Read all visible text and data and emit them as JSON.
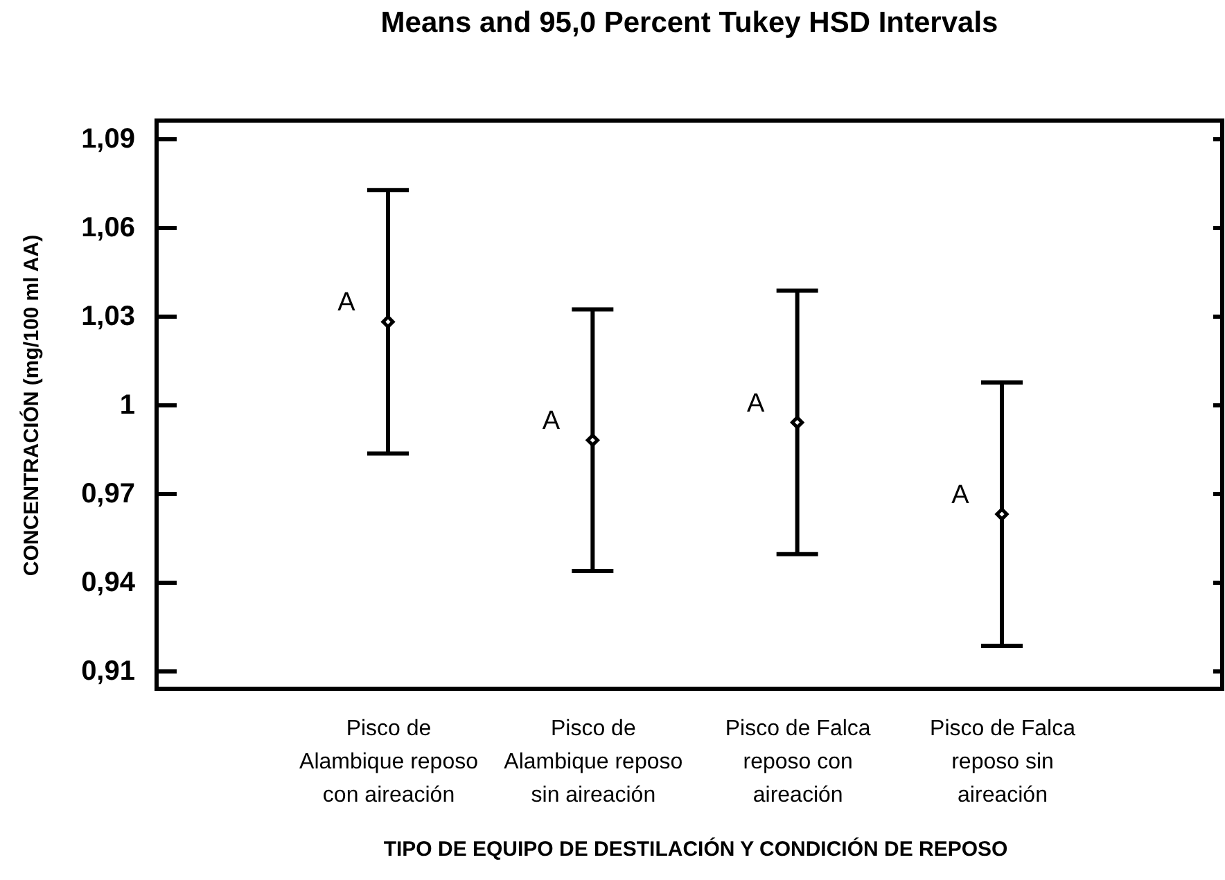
{
  "chart_data": {
    "type": "scatter",
    "title": "Means and 95,0 Percent Tukey HSD Intervals",
    "xlabel": "TIPO DE EQUIPO DE DESTILACIÓN Y CONDICIÓN DE REPOSO",
    "ylabel": "CONCENTRACIÓN (mg/100 ml AA)",
    "categories": [
      "Pisco de Alambique reposo con aireación",
      "Pisco de Alambique reposo sin aireación",
      "Pisco de Falca reposo con aireación",
      "Pisco de Falca reposo sin aireación"
    ],
    "values": [
      1.028,
      0.988,
      0.994,
      0.963
    ],
    "errors": [
      0.0445,
      0.0442,
      0.0445,
      0.0445
    ],
    "color": "#000000",
    "marker": "diamond",
    "ylim": [
      0.904,
      1.096
    ],
    "yticks": [
      {
        "value": 0.91,
        "label": "0,91"
      },
      {
        "value": 0.94,
        "label": "0,94"
      },
      {
        "value": 0.97,
        "label": "0,97"
      },
      1,
      {
        "value": 1.03,
        "label": "1,03"
      },
      {
        "value": 1.06,
        "label": "1,06"
      },
      {
        "value": 1.09,
        "label": "1,09"
      }
    ],
    "annotations": [
      {
        "text": "A",
        "x": "Pisco de Alambique reposo con aireación",
        "y": 1.028
      },
      {
        "text": "A",
        "x": "Pisco de Alambique reposo sin aireación",
        "y": 0.988
      },
      {
        "text": "A",
        "x": "Pisco de Falca reposo con aireación",
        "y": 0.994
      },
      {
        "text": "A",
        "x": "Pisco de Falca reposo sin aireación",
        "y": 0.963
      }
    ]
  }
}
